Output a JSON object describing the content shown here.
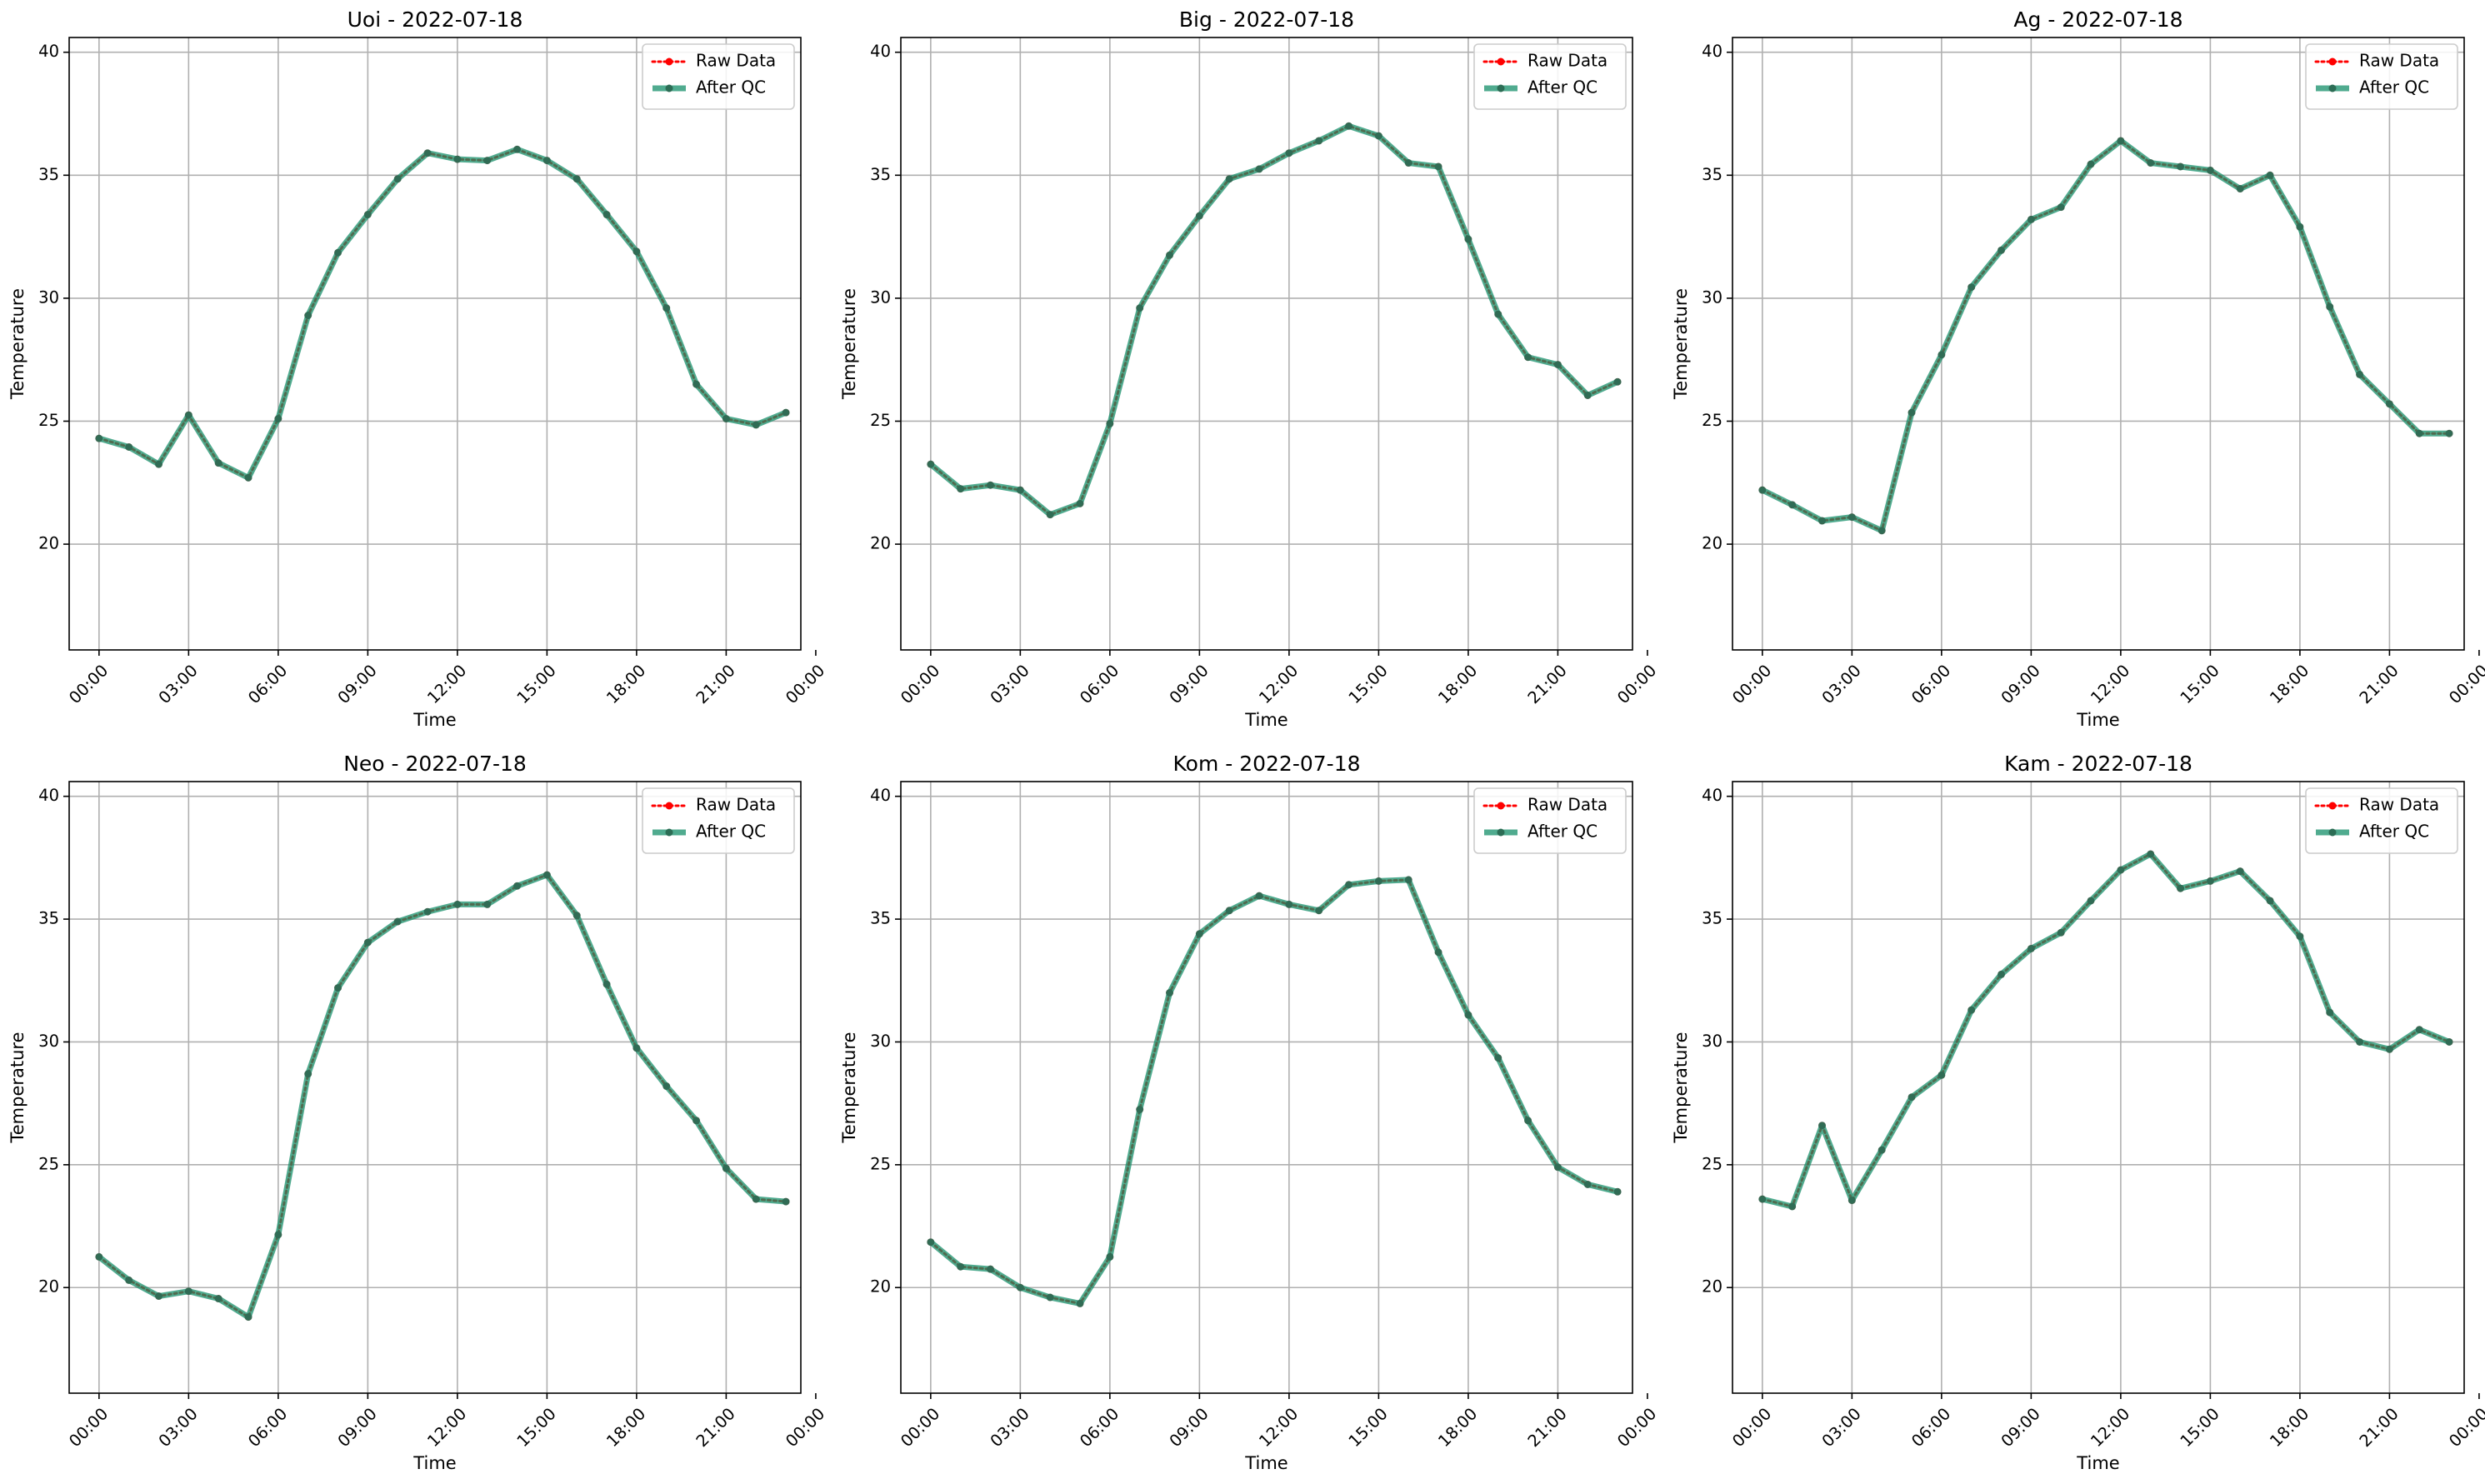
{
  "chart_data": [
    {
      "type": "line",
      "title": "Uoi - 2022-07-18",
      "xlabel": "Time",
      "ylabel": "Temperature",
      "xlim": [
        -1,
        23.5
      ],
      "ylim": [
        15.7,
        40.6
      ],
      "x_ticks": [
        0,
        3,
        6,
        9,
        12,
        15,
        18,
        21,
        24
      ],
      "x_tick_labels": [
        "00:00",
        "03:00",
        "06:00",
        "09:00",
        "12:00",
        "15:00",
        "18:00",
        "21:00",
        "00:00"
      ],
      "y_ticks": [
        20,
        25,
        30,
        35,
        40
      ],
      "y_tick_labels": [
        "20",
        "25",
        "30",
        "35",
        "40"
      ],
      "grid": true,
      "legend": "top-right",
      "x": [
        0,
        1,
        2,
        3,
        4,
        5,
        6,
        7,
        8,
        9,
        10,
        11,
        12,
        13,
        14,
        15,
        16,
        17,
        18,
        19,
        20,
        21,
        22,
        23
      ],
      "series": [
        {
          "name": "Raw Data",
          "values": [
            24.3,
            23.95,
            23.25,
            25.25,
            23.3,
            22.7,
            25.1,
            29.3,
            31.85,
            33.4,
            34.85,
            35.9,
            35.65,
            35.6,
            36.05,
            35.6,
            34.85,
            33.4,
            31.9,
            29.6,
            26.5,
            25.1,
            24.85,
            25.35
          ],
          "color": "#ff0000",
          "style": "dotted"
        },
        {
          "name": "After QC",
          "values": [
            24.3,
            23.95,
            23.25,
            25.25,
            23.3,
            22.7,
            25.1,
            29.3,
            31.85,
            33.4,
            34.85,
            35.9,
            35.65,
            35.6,
            36.05,
            35.6,
            34.85,
            33.4,
            31.9,
            29.6,
            26.5,
            25.1,
            24.85,
            25.35
          ],
          "color": "#168f6a",
          "style": "solid"
        }
      ]
    },
    {
      "type": "line",
      "title": "Big - 2022-07-18",
      "xlabel": "Time",
      "ylabel": "Temperature",
      "xlim": [
        -1,
        23.5
      ],
      "ylim": [
        15.7,
        40.6
      ],
      "x_ticks": [
        0,
        3,
        6,
        9,
        12,
        15,
        18,
        21,
        24
      ],
      "x_tick_labels": [
        "00:00",
        "03:00",
        "06:00",
        "09:00",
        "12:00",
        "15:00",
        "18:00",
        "21:00",
        "00:00"
      ],
      "y_ticks": [
        20,
        25,
        30,
        35,
        40
      ],
      "y_tick_labels": [
        "20",
        "25",
        "30",
        "35",
        "40"
      ],
      "grid": true,
      "legend": "top-right",
      "x": [
        0,
        1,
        2,
        3,
        4,
        5,
        6,
        7,
        8,
        9,
        10,
        11,
        12,
        13,
        14,
        15,
        16,
        17,
        18,
        19,
        20,
        21,
        22,
        23
      ],
      "series": [
        {
          "name": "Raw Data",
          "values": [
            23.25,
            22.25,
            22.4,
            22.2,
            21.2,
            21.65,
            24.9,
            29.6,
            31.75,
            33.35,
            34.85,
            35.25,
            35.9,
            36.4,
            37.0,
            36.6,
            35.5,
            35.35,
            32.4,
            29.35,
            27.6,
            27.3,
            26.05,
            26.6
          ],
          "color": "#ff0000",
          "style": "dotted"
        },
        {
          "name": "After QC",
          "values": [
            23.25,
            22.25,
            22.4,
            22.2,
            21.2,
            21.65,
            24.9,
            29.6,
            31.75,
            33.35,
            34.85,
            35.25,
            35.9,
            36.4,
            37.0,
            36.6,
            35.5,
            35.35,
            32.4,
            29.35,
            27.6,
            27.3,
            26.05,
            26.6
          ],
          "color": "#168f6a",
          "style": "solid"
        }
      ]
    },
    {
      "type": "line",
      "title": "Ag - 2022-07-18",
      "xlabel": "Time",
      "ylabel": "Temperature",
      "xlim": [
        -1,
        23.5
      ],
      "ylim": [
        15.7,
        40.6
      ],
      "x_ticks": [
        0,
        3,
        6,
        9,
        12,
        15,
        18,
        21,
        24
      ],
      "x_tick_labels": [
        "00:00",
        "03:00",
        "06:00",
        "09:00",
        "12:00",
        "15:00",
        "18:00",
        "21:00",
        "00:00"
      ],
      "y_ticks": [
        20,
        25,
        30,
        35,
        40
      ],
      "y_tick_labels": [
        "20",
        "25",
        "30",
        "35",
        "40"
      ],
      "grid": true,
      "legend": "top-right",
      "x": [
        0,
        1,
        2,
        3,
        4,
        5,
        6,
        7,
        8,
        9,
        10,
        11,
        12,
        13,
        14,
        15,
        16,
        17,
        18,
        19,
        20,
        21,
        22,
        23
      ],
      "series": [
        {
          "name": "Raw Data",
          "values": [
            22.2,
            21.6,
            20.95,
            21.1,
            20.55,
            25.35,
            27.7,
            30.45,
            31.95,
            33.2,
            33.7,
            35.45,
            36.4,
            35.5,
            35.35,
            35.2,
            34.45,
            35.0,
            32.9,
            29.65,
            26.9,
            25.7,
            24.5,
            24.5
          ],
          "color": "#ff0000",
          "style": "dotted"
        },
        {
          "name": "After QC",
          "values": [
            22.2,
            21.6,
            20.95,
            21.1,
            20.55,
            25.35,
            27.7,
            30.45,
            31.95,
            33.2,
            33.7,
            35.45,
            36.4,
            35.5,
            35.35,
            35.2,
            34.45,
            35.0,
            32.9,
            29.65,
            26.9,
            25.7,
            24.5,
            24.5
          ],
          "color": "#168f6a",
          "style": "solid"
        }
      ]
    },
    {
      "type": "line",
      "title": "Neo - 2022-07-18",
      "xlabel": "Time",
      "ylabel": "Temperature",
      "xlim": [
        -1,
        23.5
      ],
      "ylim": [
        15.7,
        40.6
      ],
      "x_ticks": [
        0,
        3,
        6,
        9,
        12,
        15,
        18,
        21,
        24
      ],
      "x_tick_labels": [
        "00:00",
        "03:00",
        "06:00",
        "09:00",
        "12:00",
        "15:00",
        "18:00",
        "21:00",
        "00:00"
      ],
      "y_ticks": [
        20,
        25,
        30,
        35,
        40
      ],
      "y_tick_labels": [
        "20",
        "25",
        "30",
        "35",
        "40"
      ],
      "grid": true,
      "legend": "top-right",
      "x": [
        0,
        1,
        2,
        3,
        4,
        5,
        6,
        7,
        8,
        9,
        10,
        11,
        12,
        13,
        14,
        15,
        16,
        17,
        18,
        19,
        20,
        21,
        22,
        23
      ],
      "series": [
        {
          "name": "Raw Data",
          "values": [
            21.25,
            20.3,
            19.65,
            19.85,
            19.55,
            18.8,
            22.15,
            28.7,
            32.2,
            34.05,
            34.9,
            35.3,
            35.6,
            35.6,
            36.35,
            36.8,
            35.15,
            32.35,
            29.75,
            28.2,
            26.8,
            24.85,
            23.6,
            23.5
          ],
          "color": "#ff0000",
          "style": "dotted"
        },
        {
          "name": "After QC",
          "values": [
            21.25,
            20.3,
            19.65,
            19.85,
            19.55,
            18.8,
            22.15,
            28.7,
            32.2,
            34.05,
            34.9,
            35.3,
            35.6,
            35.6,
            36.35,
            36.8,
            35.15,
            32.35,
            29.75,
            28.2,
            26.8,
            24.85,
            23.6,
            23.5
          ],
          "color": "#168f6a",
          "style": "solid"
        }
      ]
    },
    {
      "type": "line",
      "title": "Kom - 2022-07-18",
      "xlabel": "Time",
      "ylabel": "Temperature",
      "xlim": [
        -1,
        23.5
      ],
      "ylim": [
        15.7,
        40.6
      ],
      "x_ticks": [
        0,
        3,
        6,
        9,
        12,
        15,
        18,
        21,
        24
      ],
      "x_tick_labels": [
        "00:00",
        "03:00",
        "06:00",
        "09:00",
        "12:00",
        "15:00",
        "18:00",
        "21:00",
        "00:00"
      ],
      "y_ticks": [
        20,
        25,
        30,
        35,
        40
      ],
      "y_tick_labels": [
        "20",
        "25",
        "30",
        "35",
        "40"
      ],
      "grid": true,
      "legend": "top-right",
      "x": [
        0,
        1,
        2,
        3,
        4,
        5,
        6,
        7,
        8,
        9,
        10,
        11,
        12,
        13,
        14,
        15,
        16,
        17,
        18,
        19,
        20,
        21,
        22,
        23
      ],
      "series": [
        {
          "name": "Raw Data",
          "values": [
            21.85,
            20.85,
            20.75,
            20.0,
            19.6,
            19.35,
            21.25,
            27.25,
            32.0,
            34.4,
            35.35,
            35.95,
            35.6,
            35.35,
            36.4,
            36.55,
            36.6,
            33.65,
            31.1,
            29.35,
            26.8,
            24.9,
            24.2,
            23.9
          ],
          "color": "#ff0000",
          "style": "dotted"
        },
        {
          "name": "After QC",
          "values": [
            21.85,
            20.85,
            20.75,
            20.0,
            19.6,
            19.35,
            21.25,
            27.25,
            32.0,
            34.4,
            35.35,
            35.95,
            35.6,
            35.35,
            36.4,
            36.55,
            36.6,
            33.65,
            31.1,
            29.35,
            26.8,
            24.9,
            24.2,
            23.9
          ],
          "color": "#168f6a",
          "style": "solid"
        }
      ]
    },
    {
      "type": "line",
      "title": "Kam - 2022-07-18",
      "xlabel": "Time",
      "ylabel": "Temperature",
      "xlim": [
        -1,
        23.5
      ],
      "ylim": [
        15.7,
        40.6
      ],
      "x_ticks": [
        0,
        3,
        6,
        9,
        12,
        15,
        18,
        21,
        24
      ],
      "x_tick_labels": [
        "00:00",
        "03:00",
        "06:00",
        "09:00",
        "12:00",
        "15:00",
        "18:00",
        "21:00",
        "00:00"
      ],
      "y_ticks": [
        20,
        25,
        30,
        35,
        40
      ],
      "y_tick_labels": [
        "20",
        "25",
        "30",
        "35",
        "40"
      ],
      "grid": true,
      "legend": "top-right",
      "x": [
        0,
        1,
        2,
        3,
        4,
        5,
        6,
        7,
        8,
        9,
        10,
        11,
        12,
        13,
        14,
        15,
        16,
        17,
        18,
        19,
        20,
        21,
        22,
        23
      ],
      "series": [
        {
          "name": "Raw Data",
          "values": [
            23.6,
            23.3,
            26.6,
            23.55,
            25.6,
            27.75,
            28.65,
            31.3,
            32.75,
            33.8,
            34.45,
            35.75,
            37.0,
            37.65,
            36.25,
            36.55,
            36.95,
            35.75,
            34.3,
            31.2,
            30.0,
            29.7,
            30.5,
            30.0
          ],
          "color": "#ff0000",
          "style": "dotted"
        },
        {
          "name": "After QC",
          "values": [
            23.6,
            23.3,
            26.6,
            23.55,
            25.6,
            27.75,
            28.65,
            31.3,
            32.75,
            33.8,
            34.45,
            35.75,
            37.0,
            37.65,
            36.25,
            36.55,
            36.95,
            35.75,
            34.3,
            31.2,
            30.0,
            29.7,
            30.5,
            30.0
          ],
          "color": "#168f6a",
          "style": "solid"
        }
      ]
    }
  ]
}
